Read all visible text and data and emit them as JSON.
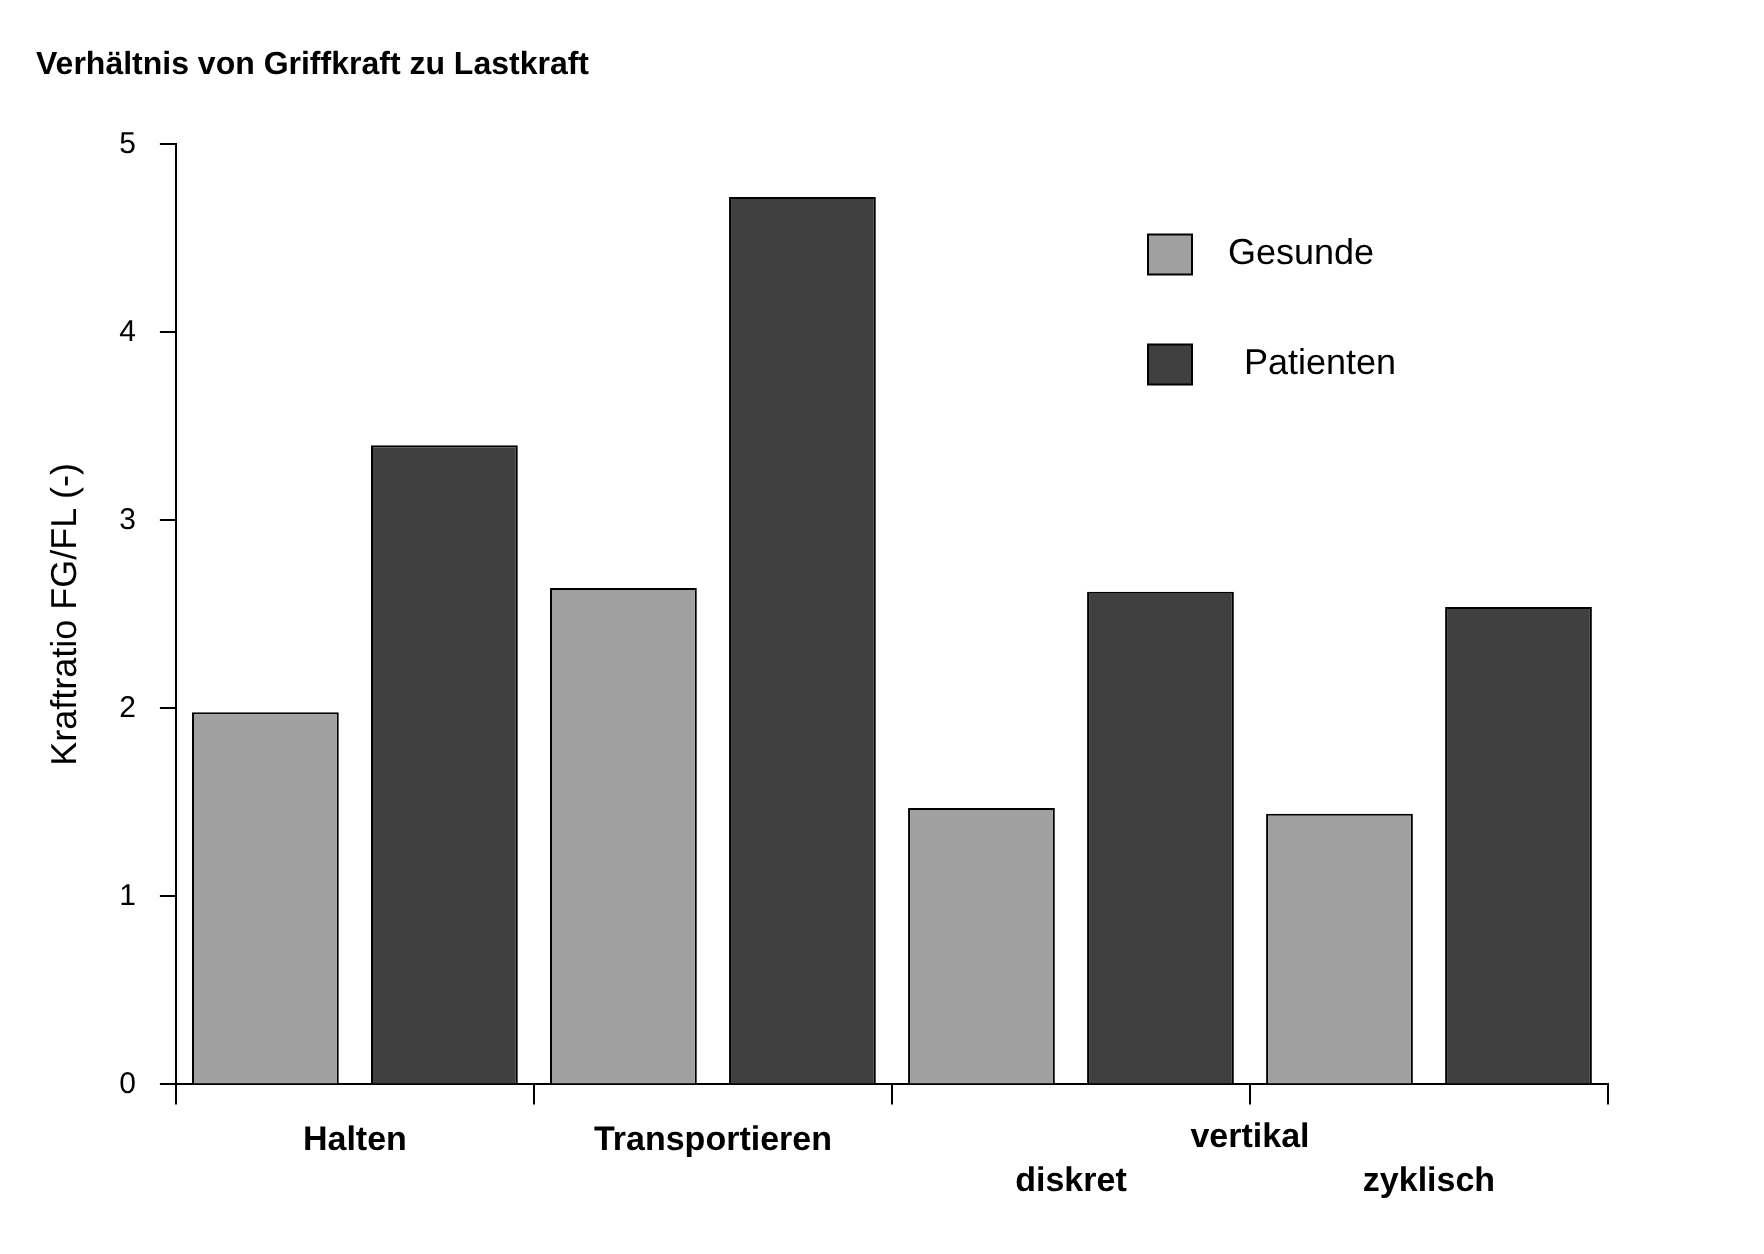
{
  "chart_data": {
    "type": "bar",
    "title": "Verhältnis von Griffkraft zu Lastkraft",
    "ylabel": "Kraftratio FG/FL (-)",
    "categories": [
      "Halten",
      "Transportieren",
      "diskret",
      "zyklisch"
    ],
    "series": [
      {
        "name": "Gesunde",
        "color": "#a0a0a0",
        "values": [
          1.98,
          2.64,
          1.47,
          1.44
        ]
      },
      {
        "name": "Patienten",
        "color": "#404040",
        "values": [
          3.4,
          4.72,
          2.62,
          2.54
        ]
      }
    ],
    "ylim": [
      0,
      5
    ],
    "yticks": [
      0,
      1,
      2,
      3,
      4,
      5
    ],
    "grid": false,
    "legend": "top right",
    "annotations": [
      "vertikal"
    ]
  }
}
